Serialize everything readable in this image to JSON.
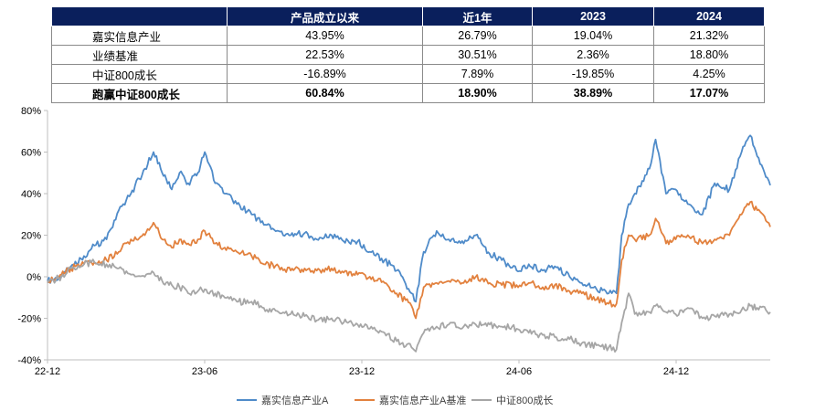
{
  "table": {
    "headers": [
      "",
      "产品成立以来",
      "近1年",
      "2023",
      "2024"
    ],
    "rows": [
      {
        "name": "嘉实信息产业",
        "values": [
          "43.95%",
          "26.79%",
          "19.04%",
          "21.32%"
        ],
        "bold": false
      },
      {
        "name": "业绩基准",
        "values": [
          "22.53%",
          "30.51%",
          "2.36%",
          "18.80%"
        ],
        "bold": false
      },
      {
        "name": "中证800成长",
        "values": [
          "-16.89%",
          "7.89%",
          "-19.85%",
          "4.25%"
        ],
        "bold": false
      },
      {
        "name": "跑赢中证800成长",
        "values": [
          "60.84%",
          "18.90%",
          "38.89%",
          "17.07%"
        ],
        "bold": true
      }
    ]
  },
  "chart_data": {
    "type": "line",
    "x_tick_labels": [
      "22-12",
      "23-06",
      "23-12",
      "24-06",
      "24-12"
    ],
    "y_tick_labels": [
      "-40%",
      "-20%",
      "0%",
      "20%",
      "40%",
      "60%",
      "80%"
    ],
    "ylim": [
      -40,
      80
    ],
    "x_domain": [
      "2022-12-09",
      "2025-03-20"
    ],
    "grid": false,
    "legend_position": "bottom",
    "series": [
      {
        "name": "嘉实信息产业A",
        "color": "#4f8bc9",
        "points": [
          [
            "2022-12-09",
            -2
          ],
          [
            "2022-12-25",
            0
          ],
          [
            "2023-01-05",
            5
          ],
          [
            "2023-01-20",
            10
          ],
          [
            "2023-02-01",
            15
          ],
          [
            "2023-02-15",
            18
          ],
          [
            "2023-03-01",
            32
          ],
          [
            "2023-03-15",
            40
          ],
          [
            "2023-03-31",
            52
          ],
          [
            "2023-04-10",
            60
          ],
          [
            "2023-04-20",
            50
          ],
          [
            "2023-05-01",
            42
          ],
          [
            "2023-05-10",
            50
          ],
          [
            "2023-05-20",
            45
          ],
          [
            "2023-05-31",
            50
          ],
          [
            "2023-06-08",
            60
          ],
          [
            "2023-06-20",
            45
          ],
          [
            "2023-07-01",
            40
          ],
          [
            "2023-07-15",
            35
          ],
          [
            "2023-08-01",
            30
          ],
          [
            "2023-08-15",
            25
          ],
          [
            "2023-09-01",
            22
          ],
          [
            "2023-09-15",
            20
          ],
          [
            "2023-10-01",
            21
          ],
          [
            "2023-10-15",
            18
          ],
          [
            "2023-11-01",
            20
          ],
          [
            "2023-11-15",
            17
          ],
          [
            "2023-12-01",
            17
          ],
          [
            "2023-12-15",
            12
          ],
          [
            "2024-01-01",
            8
          ],
          [
            "2024-01-15",
            3
          ],
          [
            "2024-02-01",
            -8
          ],
          [
            "2024-02-06",
            -12
          ],
          [
            "2024-02-15",
            12
          ],
          [
            "2024-03-01",
            22
          ],
          [
            "2024-03-15",
            18
          ],
          [
            "2024-04-01",
            16
          ],
          [
            "2024-04-15",
            20
          ],
          [
            "2024-05-01",
            11
          ],
          [
            "2024-05-15",
            8
          ],
          [
            "2024-06-01",
            3
          ],
          [
            "2024-06-15",
            6
          ],
          [
            "2024-07-01",
            3
          ],
          [
            "2024-07-15",
            5
          ],
          [
            "2024-08-01",
            0
          ],
          [
            "2024-08-15",
            -3
          ],
          [
            "2024-09-01",
            -6
          ],
          [
            "2024-09-15",
            -8
          ],
          [
            "2024-09-24",
            -8
          ],
          [
            "2024-09-30",
            20
          ],
          [
            "2024-10-08",
            35
          ],
          [
            "2024-10-15",
            40
          ],
          [
            "2024-11-01",
            52
          ],
          [
            "2024-11-08",
            66
          ],
          [
            "2024-11-20",
            40
          ],
          [
            "2024-12-01",
            42
          ],
          [
            "2024-12-15",
            35
          ],
          [
            "2025-01-01",
            30
          ],
          [
            "2025-01-15",
            45
          ],
          [
            "2025-02-01",
            42
          ],
          [
            "2025-02-15",
            60
          ],
          [
            "2025-02-25",
            68
          ],
          [
            "2025-03-05",
            58
          ],
          [
            "2025-03-15",
            48
          ],
          [
            "2025-03-20",
            44
          ]
        ]
      },
      {
        "name": "嘉实信息产业A基准",
        "color": "#e2813e",
        "points": [
          [
            "2022-12-09",
            -2
          ],
          [
            "2022-12-25",
            1
          ],
          [
            "2023-01-05",
            4
          ],
          [
            "2023-01-20",
            6
          ],
          [
            "2023-02-01",
            7
          ],
          [
            "2023-02-15",
            8
          ],
          [
            "2023-03-01",
            12
          ],
          [
            "2023-03-15",
            18
          ],
          [
            "2023-03-31",
            20
          ],
          [
            "2023-04-10",
            26
          ],
          [
            "2023-04-20",
            18
          ],
          [
            "2023-05-01",
            14
          ],
          [
            "2023-05-10",
            18
          ],
          [
            "2023-05-20",
            16
          ],
          [
            "2023-05-31",
            18
          ],
          [
            "2023-06-08",
            22
          ],
          [
            "2023-06-20",
            16
          ],
          [
            "2023-07-01",
            14
          ],
          [
            "2023-07-15",
            12
          ],
          [
            "2023-08-01",
            10
          ],
          [
            "2023-08-15",
            6
          ],
          [
            "2023-09-01",
            5
          ],
          [
            "2023-09-15",
            3
          ],
          [
            "2023-10-01",
            4
          ],
          [
            "2023-10-15",
            3
          ],
          [
            "2023-11-01",
            4
          ],
          [
            "2023-11-15",
            2
          ],
          [
            "2023-12-01",
            1
          ],
          [
            "2023-12-15",
            0
          ],
          [
            "2024-01-01",
            -3
          ],
          [
            "2024-01-15",
            -8
          ],
          [
            "2024-02-01",
            -14
          ],
          [
            "2024-02-06",
            -20
          ],
          [
            "2024-02-15",
            -5
          ],
          [
            "2024-03-01",
            -3
          ],
          [
            "2024-03-15",
            -2
          ],
          [
            "2024-04-01",
            -3
          ],
          [
            "2024-04-15",
            0
          ],
          [
            "2024-05-01",
            -3
          ],
          [
            "2024-05-15",
            -4
          ],
          [
            "2024-06-01",
            -4
          ],
          [
            "2024-06-15",
            -3
          ],
          [
            "2024-07-01",
            -5
          ],
          [
            "2024-07-15",
            -4
          ],
          [
            "2024-08-01",
            -7
          ],
          [
            "2024-08-15",
            -8
          ],
          [
            "2024-09-01",
            -11
          ],
          [
            "2024-09-15",
            -13
          ],
          [
            "2024-09-24",
            -13
          ],
          [
            "2024-09-30",
            8
          ],
          [
            "2024-10-08",
            20
          ],
          [
            "2024-10-15",
            18
          ],
          [
            "2024-11-01",
            20
          ],
          [
            "2024-11-08",
            28
          ],
          [
            "2024-11-20",
            16
          ],
          [
            "2024-12-01",
            18
          ],
          [
            "2024-12-15",
            20
          ],
          [
            "2025-01-01",
            16
          ],
          [
            "2025-01-15",
            18
          ],
          [
            "2025-02-01",
            20
          ],
          [
            "2025-02-15",
            30
          ],
          [
            "2025-02-25",
            36
          ],
          [
            "2025-03-05",
            32
          ],
          [
            "2025-03-15",
            27
          ],
          [
            "2025-03-20",
            24
          ]
        ]
      },
      {
        "name": "中证800成长",
        "color": "#a6a6a6",
        "points": [
          [
            "2022-12-09",
            -3
          ],
          [
            "2022-12-25",
            0
          ],
          [
            "2023-01-05",
            4
          ],
          [
            "2023-01-20",
            6
          ],
          [
            "2023-02-01",
            7
          ],
          [
            "2023-02-15",
            6
          ],
          [
            "2023-03-01",
            4
          ],
          [
            "2023-03-15",
            1
          ],
          [
            "2023-03-31",
            0
          ],
          [
            "2023-04-10",
            2
          ],
          [
            "2023-04-20",
            -2
          ],
          [
            "2023-05-01",
            -4
          ],
          [
            "2023-05-10",
            -5
          ],
          [
            "2023-05-20",
            -8
          ],
          [
            "2023-05-31",
            -7
          ],
          [
            "2023-06-08",
            -6
          ],
          [
            "2023-06-20",
            -8
          ],
          [
            "2023-07-01",
            -10
          ],
          [
            "2023-07-15",
            -12
          ],
          [
            "2023-08-01",
            -12
          ],
          [
            "2023-08-15",
            -15
          ],
          [
            "2023-09-01",
            -17
          ],
          [
            "2023-09-15",
            -18
          ],
          [
            "2023-10-01",
            -19
          ],
          [
            "2023-10-15",
            -21
          ],
          [
            "2023-11-01",
            -20
          ],
          [
            "2023-11-15",
            -22
          ],
          [
            "2023-12-01",
            -23
          ],
          [
            "2023-12-15",
            -25
          ],
          [
            "2024-01-01",
            -27
          ],
          [
            "2024-01-15",
            -31
          ],
          [
            "2024-02-01",
            -34
          ],
          [
            "2024-02-06",
            -36
          ],
          [
            "2024-02-15",
            -27
          ],
          [
            "2024-03-01",
            -24
          ],
          [
            "2024-03-15",
            -23
          ],
          [
            "2024-04-01",
            -24
          ],
          [
            "2024-04-15",
            -23
          ],
          [
            "2024-05-01",
            -23
          ],
          [
            "2024-05-15",
            -24
          ],
          [
            "2024-06-01",
            -25
          ],
          [
            "2024-06-15",
            -27
          ],
          [
            "2024-07-01",
            -28
          ],
          [
            "2024-07-15",
            -29
          ],
          [
            "2024-08-01",
            -30
          ],
          [
            "2024-08-15",
            -32
          ],
          [
            "2024-09-01",
            -33
          ],
          [
            "2024-09-15",
            -34
          ],
          [
            "2024-09-24",
            -35
          ],
          [
            "2024-09-30",
            -22
          ],
          [
            "2024-10-08",
            -8
          ],
          [
            "2024-10-15",
            -18
          ],
          [
            "2024-11-01",
            -17
          ],
          [
            "2024-11-08",
            -14
          ],
          [
            "2024-11-20",
            -17
          ],
          [
            "2024-12-01",
            -18
          ],
          [
            "2024-12-15",
            -15
          ],
          [
            "2025-01-01",
            -20
          ],
          [
            "2025-01-15",
            -19
          ],
          [
            "2025-02-01",
            -18
          ],
          [
            "2025-02-15",
            -16
          ],
          [
            "2025-02-25",
            -14
          ],
          [
            "2025-03-05",
            -15
          ],
          [
            "2025-03-15",
            -16
          ],
          [
            "2025-03-20",
            -17
          ]
        ]
      }
    ]
  }
}
